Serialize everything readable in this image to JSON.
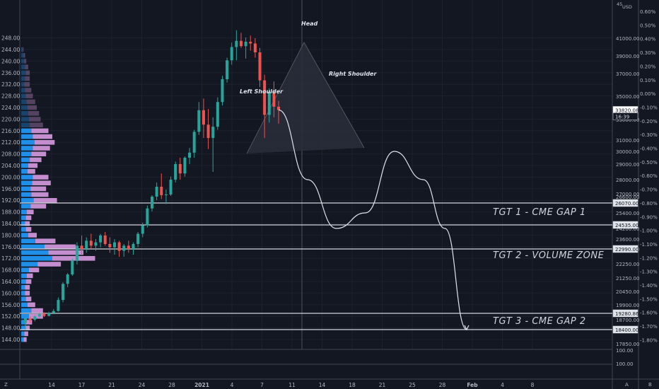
{
  "chart_data": {
    "type": "candlestick",
    "currency": "USD",
    "left_axis": {
      "min": 142,
      "max": 250,
      "ticks": [
        248,
        244,
        240,
        236,
        232,
        228,
        224,
        220,
        216,
        212,
        208,
        204,
        200,
        196,
        192,
        188,
        184,
        180,
        176,
        172,
        168,
        164,
        160,
        156,
        152,
        148,
        144
      ]
    },
    "left_tick_labels": [
      "248.00",
      "244.00",
      "240.00",
      "236.00",
      "232.00",
      "228.00",
      "224.00",
      "220.00",
      "216.00",
      "212.00",
      "208.00",
      "204.00",
      "200.00",
      "196.00",
      "192.00",
      "188.00",
      "184.00",
      "180.00",
      "176.00",
      "172.00",
      "168.00",
      "164.00",
      "160.00",
      "156.00",
      "152.00",
      "148.00",
      "144.00"
    ],
    "price_axis": {
      "ticks": [
        {
          "label": "41000.00",
          "price": 41000
        },
        {
          "label": "39000.00",
          "price": 39000
        },
        {
          "label": "37000.00",
          "price": 37000
        },
        {
          "label": "35000.00",
          "price": 35000
        },
        {
          "label": "33000.00",
          "price": 33000
        },
        {
          "label": "31000.00",
          "price": 31000
        },
        {
          "label": "30000.00",
          "price": 30000
        },
        {
          "label": "29000.00",
          "price": 29000
        },
        {
          "label": "28000.00",
          "price": 28000
        },
        {
          "label": "27000.00",
          "price": 27000
        },
        {
          "label": "26600.00",
          "price": 26600
        },
        {
          "label": "25400.00",
          "price": 25400
        },
        {
          "label": "24200.00",
          "price": 24200
        },
        {
          "label": "23600.00",
          "price": 23600
        },
        {
          "label": "23000.00",
          "price": 23000
        },
        {
          "label": "22250.00",
          "price": 22250
        },
        {
          "label": "21250.00",
          "price": 21250
        },
        {
          "label": "20450.00",
          "price": 20450
        },
        {
          "label": "19900.00",
          "price": 19900
        },
        {
          "label": "18700.00",
          "price": 18700
        },
        {
          "label": "17850.00",
          "price": 17850
        }
      ]
    },
    "pct_axis": [
      "0.60%",
      "0.50%",
      "0.40%",
      "0.30%",
      "0.20%",
      "0.10%",
      "0.00%",
      "-0.10%",
      "-0.20%",
      "-0.30%",
      "-0.40%",
      "-0.50%",
      "-0.60%",
      "-0.70%",
      "-0.80%",
      "-0.90%",
      "-1.00%",
      "-1.10%",
      "-1.20%",
      "-1.30%",
      "-1.40%",
      "-1.50%",
      "-1.60%",
      "-1.70%",
      "-1.80%"
    ],
    "x_ticks": [
      "14",
      "17",
      "21",
      "24",
      "28",
      "2021",
      "4",
      "7",
      "11",
      "14",
      "18",
      "21",
      "25",
      "28",
      "Feb",
      "4",
      "8"
    ],
    "price_labels": [
      {
        "label": "33820.08",
        "price": 33820,
        "style": "current"
      },
      {
        "label": "16:39",
        "style": "countdown"
      },
      {
        "label": "26070.00",
        "price": 26070
      },
      {
        "label": "24535.00",
        "price": 24535
      },
      {
        "label": "22990.00",
        "price": 22990
      },
      {
        "label": "19280.86",
        "price": 19280
      },
      {
        "label": "18400.00",
        "price": 18400
      }
    ],
    "horizontal_levels": [
      26070,
      24535,
      22990,
      19280,
      18400
    ],
    "annotations": [
      "TGT 1 - CME GAP 1",
      "TGT 2 - VOLUME ZONE",
      "TGT 3 - CME GAP 2"
    ],
    "pattern_labels": {
      "head": "Head",
      "left_shoulder": "Left Shoulder",
      "right_shoulder": "Right Shoulder"
    },
    "indicator_labels": [
      "100.00",
      "100.00"
    ],
    "bottom_bar": {
      "left": "Z",
      "right_a": "A",
      "right_b": "B"
    },
    "colors": {
      "background": "#131722",
      "bull": "#26a69a",
      "bear": "#ef5350",
      "profile_up": "#2196f3",
      "profile_down": "#ce93d8",
      "level": "#d1d4dc",
      "text": "#b2b5be"
    },
    "candles": [
      [
        0,
        18600,
        18900,
        18400,
        18800
      ],
      [
        1,
        18800,
        19000,
        18600,
        18700
      ],
      [
        2,
        18700,
        19100,
        18650,
        19000
      ],
      [
        3,
        19000,
        19300,
        18900,
        19200
      ],
      [
        4,
        19200,
        19350,
        18950,
        19050
      ],
      [
        5,
        19050,
        19400,
        19000,
        19300
      ],
      [
        6,
        19300,
        19600,
        19200,
        19450
      ],
      [
        7,
        19450,
        20200,
        19400,
        20100
      ],
      [
        8,
        20100,
        21000,
        20000,
        20900
      ],
      [
        9,
        20900,
        21600,
        20700,
        21500
      ],
      [
        10,
        21500,
        22500,
        21400,
        22400
      ],
      [
        11,
        22400,
        23400,
        22200,
        23200
      ],
      [
        12,
        23200,
        23800,
        22700,
        23000
      ],
      [
        13,
        23000,
        23700,
        22800,
        23500
      ],
      [
        14,
        23500,
        23900,
        23000,
        23200
      ],
      [
        15,
        23200,
        23600,
        22900,
        23400
      ],
      [
        16,
        23400,
        23900,
        23100,
        23800
      ],
      [
        17,
        23800,
        24000,
        23200,
        23300
      ],
      [
        18,
        23300,
        23700,
        22800,
        23100
      ],
      [
        19,
        23100,
        23600,
        22700,
        23400
      ],
      [
        20,
        23400,
        23500,
        22600,
        22900
      ],
      [
        21,
        22900,
        23300,
        22600,
        23200
      ],
      [
        22,
        23200,
        23500,
        22800,
        23000
      ],
      [
        23,
        23000,
        23400,
        22700,
        23300
      ],
      [
        24,
        23300,
        24000,
        23100,
        23900
      ],
      [
        25,
        23900,
        24700,
        23700,
        24500
      ],
      [
        26,
        24500,
        25900,
        24300,
        25700
      ],
      [
        27,
        25700,
        26800,
        25500,
        26600
      ],
      [
        28,
        26600,
        27800,
        26300,
        27500
      ],
      [
        29,
        27500,
        28400,
        26400,
        26800
      ],
      [
        30,
        26800,
        27300,
        26000,
        26900
      ],
      [
        31,
        26900,
        28200,
        26700,
        28000
      ],
      [
        32,
        28000,
        29200,
        27800,
        29000
      ],
      [
        33,
        29000,
        29500,
        28000,
        28400
      ],
      [
        34,
        28400,
        29600,
        28200,
        29500
      ],
      [
        35,
        29500,
        30300,
        29000,
        29900
      ],
      [
        36,
        29900,
        32000,
        29500,
        31800
      ],
      [
        37,
        31800,
        34500,
        31500,
        33800
      ],
      [
        38,
        33800,
        34800,
        31200,
        32500
      ],
      [
        39,
        32500,
        33900,
        30200,
        31200
      ],
      [
        40,
        31200,
        33200,
        28500,
        32300
      ],
      [
        41,
        32300,
        34900,
        32000,
        34500
      ],
      [
        42,
        34500,
        36800,
        34200,
        36500
      ],
      [
        43,
        36500,
        38800,
        36200,
        38500
      ],
      [
        44,
        38500,
        40500,
        38000,
        40000
      ],
      [
        45,
        40000,
        41900,
        38500,
        40700
      ],
      [
        46,
        40700,
        41600,
        39900,
        40100
      ],
      [
        47,
        40100,
        41100,
        38700,
        40600
      ],
      [
        48,
        40600,
        41300,
        39600,
        40400
      ],
      [
        49,
        40400,
        41000,
        38800,
        39400
      ],
      [
        50,
        39400,
        39900,
        35800,
        36400
      ],
      [
        51,
        36400,
        36900,
        31200,
        33400
      ],
      [
        52,
        33400,
        35700,
        32700,
        35400
      ],
      [
        53,
        35400,
        36300,
        33200,
        34100
      ],
      [
        54,
        34100,
        34600,
        32600,
        33820
      ]
    ],
    "projection": [
      [
        54,
        33820
      ],
      [
        58,
        28000
      ],
      [
        62,
        24200
      ],
      [
        66,
        25400
      ],
      [
        70,
        30000
      ],
      [
        74,
        28000
      ],
      [
        77,
        24200
      ],
      [
        80,
        18400
      ]
    ],
    "volume_profile": [
      [
        244,
        4,
        2
      ],
      [
        242,
        6,
        4
      ],
      [
        240,
        8,
        5
      ],
      [
        238,
        10,
        8
      ],
      [
        236,
        12,
        10
      ],
      [
        234,
        10,
        12
      ],
      [
        232,
        8,
        14
      ],
      [
        230,
        10,
        16
      ],
      [
        228,
        12,
        18
      ],
      [
        226,
        14,
        22
      ],
      [
        224,
        16,
        24
      ],
      [
        222,
        18,
        28
      ],
      [
        220,
        20,
        30
      ],
      [
        218,
        22,
        34
      ],
      [
        216,
        26,
        44
      ],
      [
        214,
        30,
        50
      ],
      [
        212,
        34,
        52
      ],
      [
        210,
        30,
        44
      ],
      [
        208,
        26,
        38
      ],
      [
        206,
        22,
        30
      ],
      [
        204,
        18,
        24
      ],
      [
        202,
        16,
        20
      ],
      [
        200,
        30,
        40
      ],
      [
        198,
        28,
        48
      ],
      [
        196,
        24,
        40
      ],
      [
        194,
        26,
        44
      ],
      [
        192,
        32,
        60
      ],
      [
        190,
        24,
        40
      ],
      [
        188,
        14,
        18
      ],
      [
        186,
        12,
        14
      ],
      [
        184,
        10,
        12
      ],
      [
        182,
        12,
        14
      ],
      [
        180,
        18,
        22
      ],
      [
        178,
        36,
        52
      ],
      [
        176,
        60,
        80
      ],
      [
        174,
        70,
        90
      ],
      [
        172,
        80,
        110
      ],
      [
        170,
        42,
        60
      ],
      [
        168,
        20,
        26
      ],
      [
        166,
        14,
        16
      ],
      [
        164,
        12,
        14
      ],
      [
        162,
        10,
        12
      ],
      [
        160,
        10,
        12
      ],
      [
        158,
        12,
        14
      ],
      [
        156,
        16,
        20
      ],
      [
        154,
        26,
        30
      ],
      [
        152,
        20,
        36
      ],
      [
        150,
        12,
        16
      ],
      [
        148,
        10,
        12
      ],
      [
        146,
        8,
        10
      ],
      [
        144,
        6,
        8
      ]
    ]
  }
}
